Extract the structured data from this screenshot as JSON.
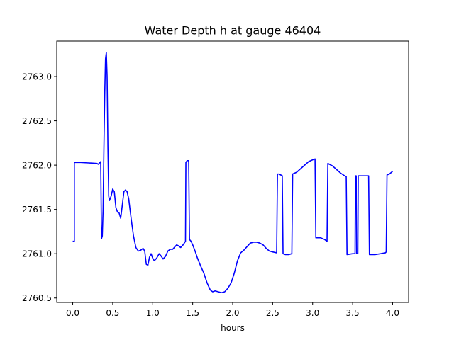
{
  "chart_data": {
    "type": "line",
    "title": "Water Depth h at gauge 46404",
    "xlabel": "hours",
    "ylabel": "",
    "xlim": [
      -0.2,
      4.2
    ],
    "ylim": [
      2760.45,
      2763.4
    ],
    "xticks": [
      0.0,
      0.5,
      1.0,
      1.5,
      2.0,
      2.5,
      3.0,
      3.5,
      4.0
    ],
    "xtick_labels": [
      "0.0",
      "0.5",
      "1.0",
      "1.5",
      "2.0",
      "2.5",
      "3.0",
      "3.5",
      "4.0"
    ],
    "yticks": [
      2760.5,
      2761.0,
      2761.5,
      2762.0,
      2762.5,
      2763.0
    ],
    "ytick_labels": [
      "2760.5",
      "2761.0",
      "2761.5",
      "2762.0",
      "2762.5",
      "2763.0"
    ],
    "grid": false,
    "series": [
      {
        "name": "",
        "color": "#0000ff",
        "points": [
          [
            0.0,
            2761.14
          ],
          [
            0.02,
            2761.14
          ],
          [
            0.02,
            2762.03
          ],
          [
            0.1,
            2762.03
          ],
          [
            0.2,
            2762.025
          ],
          [
            0.3,
            2762.02
          ],
          [
            0.32,
            2762.01
          ],
          [
            0.35,
            2762.04
          ],
          [
            0.36,
            2761.17
          ],
          [
            0.37,
            2761.2
          ],
          [
            0.38,
            2761.5
          ],
          [
            0.39,
            2762.2
          ],
          [
            0.4,
            2762.8
          ],
          [
            0.41,
            2763.2
          ],
          [
            0.42,
            2763.27
          ],
          [
            0.43,
            2763.0
          ],
          [
            0.44,
            2762.2
          ],
          [
            0.45,
            2761.65
          ],
          [
            0.46,
            2761.6
          ],
          [
            0.48,
            2761.65
          ],
          [
            0.5,
            2761.73
          ],
          [
            0.52,
            2761.7
          ],
          [
            0.54,
            2761.52
          ],
          [
            0.56,
            2761.47
          ],
          [
            0.58,
            2761.46
          ],
          [
            0.6,
            2761.4
          ],
          [
            0.62,
            2761.55
          ],
          [
            0.64,
            2761.7
          ],
          [
            0.66,
            2761.72
          ],
          [
            0.68,
            2761.7
          ],
          [
            0.7,
            2761.62
          ],
          [
            0.73,
            2761.4
          ],
          [
            0.76,
            2761.2
          ],
          [
            0.79,
            2761.07
          ],
          [
            0.82,
            2761.03
          ],
          [
            0.85,
            2761.04
          ],
          [
            0.88,
            2761.06
          ],
          [
            0.9,
            2761.03
          ],
          [
            0.92,
            2760.88
          ],
          [
            0.94,
            2760.87
          ],
          [
            0.96,
            2760.96
          ],
          [
            0.98,
            2761.0
          ],
          [
            1.0,
            2760.95
          ],
          [
            1.02,
            2760.92
          ],
          [
            1.05,
            2760.95
          ],
          [
            1.08,
            2761.0
          ],
          [
            1.1,
            2760.98
          ],
          [
            1.13,
            2760.94
          ],
          [
            1.16,
            2760.97
          ],
          [
            1.19,
            2761.03
          ],
          [
            1.22,
            2761.05
          ],
          [
            1.25,
            2761.05
          ],
          [
            1.28,
            2761.08
          ],
          [
            1.3,
            2761.1
          ],
          [
            1.32,
            2761.09
          ],
          [
            1.35,
            2761.07
          ],
          [
            1.38,
            2761.1
          ],
          [
            1.41,
            2761.14
          ],
          [
            1.415,
            2762.03
          ],
          [
            1.43,
            2762.05
          ],
          [
            1.45,
            2762.05
          ],
          [
            1.46,
            2761.16
          ],
          [
            1.48,
            2761.14
          ],
          [
            1.5,
            2761.1
          ],
          [
            1.53,
            2761.03
          ],
          [
            1.56,
            2760.95
          ],
          [
            1.6,
            2760.86
          ],
          [
            1.64,
            2760.78
          ],
          [
            1.68,
            2760.67
          ],
          [
            1.72,
            2760.59
          ],
          [
            1.75,
            2760.57
          ],
          [
            1.78,
            2760.58
          ],
          [
            1.82,
            2760.57
          ],
          [
            1.86,
            2760.56
          ],
          [
            1.9,
            2760.57
          ],
          [
            1.94,
            2760.61
          ],
          [
            1.98,
            2760.67
          ],
          [
            2.02,
            2760.78
          ],
          [
            2.06,
            2760.92
          ],
          [
            2.1,
            2761.01
          ],
          [
            2.14,
            2761.04
          ],
          [
            2.18,
            2761.08
          ],
          [
            2.22,
            2761.12
          ],
          [
            2.26,
            2761.13
          ],
          [
            2.3,
            2761.13
          ],
          [
            2.34,
            2761.12
          ],
          [
            2.38,
            2761.1
          ],
          [
            2.42,
            2761.06
          ],
          [
            2.46,
            2761.03
          ],
          [
            2.5,
            2761.02
          ],
          [
            2.55,
            2761.01
          ],
          [
            2.56,
            2761.9
          ],
          [
            2.58,
            2761.9
          ],
          [
            2.62,
            2761.88
          ],
          [
            2.63,
            2761.0
          ],
          [
            2.66,
            2760.99
          ],
          [
            2.7,
            2760.99
          ],
          [
            2.74,
            2761.0
          ],
          [
            2.75,
            2761.9
          ],
          [
            2.8,
            2761.92
          ],
          [
            2.85,
            2761.96
          ],
          [
            2.9,
            2762.0
          ],
          [
            2.95,
            2762.04
          ],
          [
            3.0,
            2762.06
          ],
          [
            3.03,
            2762.07
          ],
          [
            3.04,
            2761.18
          ],
          [
            3.1,
            2761.18
          ],
          [
            3.15,
            2761.16
          ],
          [
            3.18,
            2761.14
          ],
          [
            3.19,
            2762.02
          ],
          [
            3.25,
            2761.99
          ],
          [
            3.3,
            2761.95
          ],
          [
            3.35,
            2761.91
          ],
          [
            3.4,
            2761.88
          ],
          [
            3.42,
            2761.87
          ],
          [
            3.43,
            2760.99
          ],
          [
            3.5,
            2761.0
          ],
          [
            3.53,
            2761.0
          ],
          [
            3.535,
            2761.88
          ],
          [
            3.545,
            2761.88
          ],
          [
            3.55,
            2761.0
          ],
          [
            3.565,
            2761.0
          ],
          [
            3.57,
            2761.88
          ],
          [
            3.65,
            2761.88
          ],
          [
            3.7,
            2761.88
          ],
          [
            3.71,
            2760.99
          ],
          [
            3.78,
            2760.99
          ],
          [
            3.85,
            2761.0
          ],
          [
            3.91,
            2761.01
          ],
          [
            3.92,
            2761.02
          ],
          [
            3.93,
            2761.89
          ],
          [
            3.96,
            2761.9
          ],
          [
            4.0,
            2761.93
          ]
        ]
      }
    ]
  }
}
